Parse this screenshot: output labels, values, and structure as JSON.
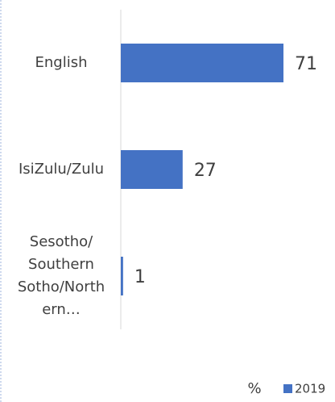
{
  "chart_data": {
    "type": "hbar",
    "categories": [
      "English",
      "IsiZulu/Zulu",
      "Sesotho/ Southern Sotho/Northern…"
    ],
    "series": [
      {
        "name": "2019",
        "color": "#4472c4",
        "values": [
          71,
          27,
          1
        ]
      }
    ],
    "xlabel": "%",
    "xlim": [
      0,
      80
    ]
  }
}
